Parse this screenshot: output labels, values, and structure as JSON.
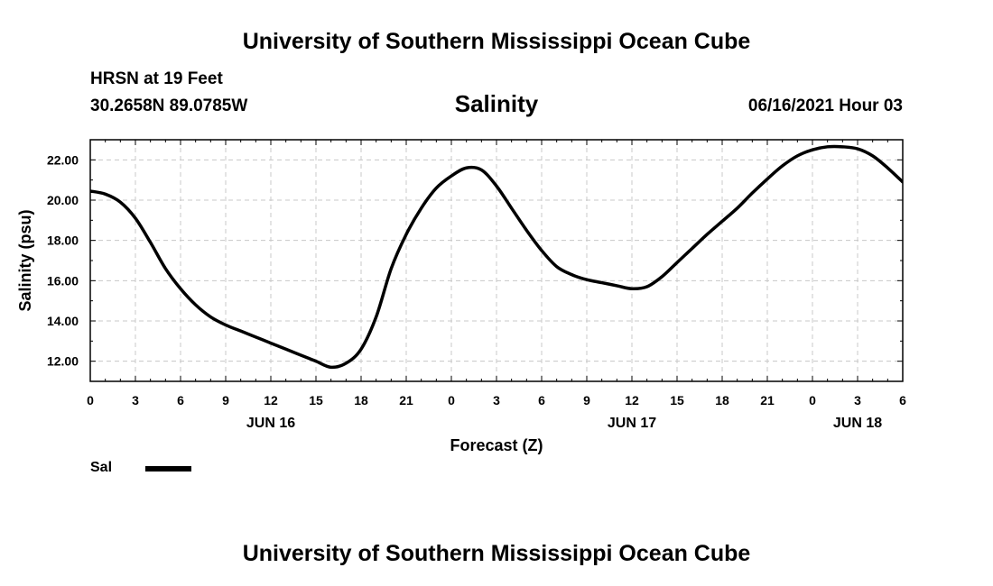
{
  "header": {
    "title": "University of Southern Mississippi Ocean Cube",
    "station": "HRSN at 19 Feet",
    "coordinates": "30.2658N  89.0785W",
    "parameter": "Salinity",
    "datetime": "06/16/2021 Hour 03"
  },
  "footer": {
    "title": "University of Southern Mississippi Ocean Cube"
  },
  "legend": {
    "label": "Sal",
    "color": "#000000"
  },
  "chart_data": {
    "type": "line",
    "title": "Salinity",
    "xlabel": "Forecast (Z)",
    "ylabel": "Salinity (psu)",
    "xlim": [
      0,
      54
    ],
    "ylim": [
      11,
      23
    ],
    "grid": true,
    "x_tick_values": [
      0,
      3,
      6,
      9,
      12,
      15,
      18,
      21,
      24,
      27,
      30,
      33,
      36,
      39,
      42,
      45,
      48,
      51,
      54
    ],
    "x_tick_labels": [
      "0",
      "3",
      "6",
      "9",
      "12",
      "15",
      "18",
      "21",
      "0",
      "3",
      "6",
      "9",
      "12",
      "15",
      "18",
      "21",
      "0",
      "3",
      "6"
    ],
    "day_labels": [
      {
        "x": 12,
        "label": "JUN 16"
      },
      {
        "x": 36,
        "label": "JUN 17"
      },
      {
        "x": 51,
        "label": "JUN 18"
      }
    ],
    "y_tick_values": [
      12,
      14,
      16,
      18,
      20,
      22
    ],
    "y_tick_labels": [
      "12.00",
      "14.00",
      "16.00",
      "18.00",
      "20.00",
      "22.00"
    ],
    "series": [
      {
        "name": "Sal",
        "color": "#000000",
        "x": [
          0,
          1,
          2,
          3,
          4,
          5,
          6,
          7,
          8,
          9,
          10,
          11,
          12,
          13,
          14,
          15,
          16,
          17,
          18,
          19,
          20,
          21,
          22,
          23,
          24,
          25,
          26,
          27,
          28,
          29,
          30,
          31,
          32,
          33,
          34,
          35,
          36,
          37,
          38,
          39,
          40,
          41,
          42,
          43,
          44,
          45,
          46,
          47,
          48,
          49,
          50,
          51,
          52,
          53,
          54
        ],
        "values": [
          20.45,
          20.3,
          19.9,
          19.1,
          17.9,
          16.6,
          15.6,
          14.8,
          14.2,
          13.8,
          13.5,
          13.2,
          12.9,
          12.6,
          12.3,
          12.0,
          11.7,
          11.9,
          12.6,
          14.2,
          16.6,
          18.3,
          19.6,
          20.6,
          21.2,
          21.6,
          21.5,
          20.7,
          19.6,
          18.5,
          17.5,
          16.7,
          16.3,
          16.05,
          15.9,
          15.75,
          15.6,
          15.7,
          16.2,
          16.9,
          17.6,
          18.3,
          18.95,
          19.6,
          20.35,
          21.05,
          21.7,
          22.2,
          22.5,
          22.65,
          22.65,
          22.55,
          22.2,
          21.6,
          20.9
        ]
      }
    ]
  }
}
